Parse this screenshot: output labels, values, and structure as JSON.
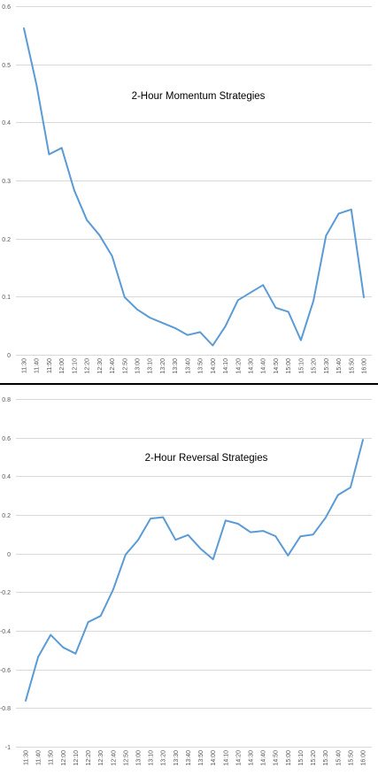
{
  "colors": {
    "series": "#5b9bd5",
    "grid": "#d9d9d9",
    "tick_text": "#595959",
    "divider": "#000000"
  },
  "chart_data": [
    {
      "type": "line",
      "title": "2-Hour Momentum Strategies",
      "legend": "none",
      "grid": true,
      "ylim": [
        0,
        0.6
      ],
      "yticks": [
        "0",
        "0.1",
        "0.2",
        "0.3",
        "0.4",
        "0.5",
        "0.6"
      ],
      "yticks_values": [
        0,
        0.1,
        0.2,
        0.3,
        0.4,
        0.5,
        0.6
      ],
      "categories": [
        "11:30",
        "11:40",
        "11:50",
        "12:00",
        "12:10",
        "12:20",
        "12:30",
        "12:40",
        "12:50",
        "13:00",
        "13:10",
        "13:20",
        "13:30",
        "13:40",
        "13:50",
        "14:00",
        "14:10",
        "14:20",
        "14:30",
        "14:40",
        "14:50",
        "15:00",
        "15:10",
        "15:20",
        "15:30",
        "15:40",
        "15:50",
        "16:00"
      ],
      "series": [
        {
          "values": [
            0.562,
            0.465,
            0.345,
            0.356,
            0.283,
            0.232,
            0.206,
            0.17,
            0.099,
            0.078,
            0.064,
            0.055,
            0.046,
            0.034,
            0.039,
            0.016,
            0.049,
            0.094,
            0.107,
            0.12,
            0.081,
            0.074,
            0.025,
            0.093,
            0.205,
            0.243,
            0.25,
            0.099
          ]
        }
      ]
    },
    {
      "type": "line",
      "title": "2-Hour Reversal Strategies",
      "legend": "none",
      "grid": true,
      "ylim": [
        -1,
        0.8
      ],
      "yticks": [
        "-1",
        "-0.8",
        "-0.6",
        "-0.4",
        "-0.2",
        "0",
        "0.2",
        "0.4",
        "0.6",
        "0.8"
      ],
      "yticks_values": [
        -1,
        -0.8,
        -0.6,
        -0.4,
        -0.2,
        0,
        0.2,
        0.4,
        0.6,
        0.8
      ],
      "categories": [
        "11:30",
        "11:40",
        "11:50",
        "12:00",
        "12:10",
        "12:20",
        "12:30",
        "12:40",
        "12:50",
        "13:00",
        "13:10",
        "13:20",
        "13:30",
        "13:40",
        "13:50",
        "14:00",
        "14:10",
        "14:20",
        "14:30",
        "14:40",
        "14:50",
        "15:00",
        "15:10",
        "15:20",
        "15:30",
        "15:40",
        "15:50",
        "16:00"
      ],
      "series": [
        {
          "values": [
            -0.762,
            -0.535,
            -0.421,
            -0.486,
            -0.518,
            -0.355,
            -0.323,
            -0.187,
            -0.005,
            0.07,
            0.181,
            0.188,
            0.071,
            0.096,
            0.025,
            -0.03,
            0.171,
            0.154,
            0.11,
            0.117,
            0.09,
            -0.01,
            0.089,
            0.098,
            0.185,
            0.303,
            0.342,
            0.589
          ]
        }
      ]
    }
  ]
}
